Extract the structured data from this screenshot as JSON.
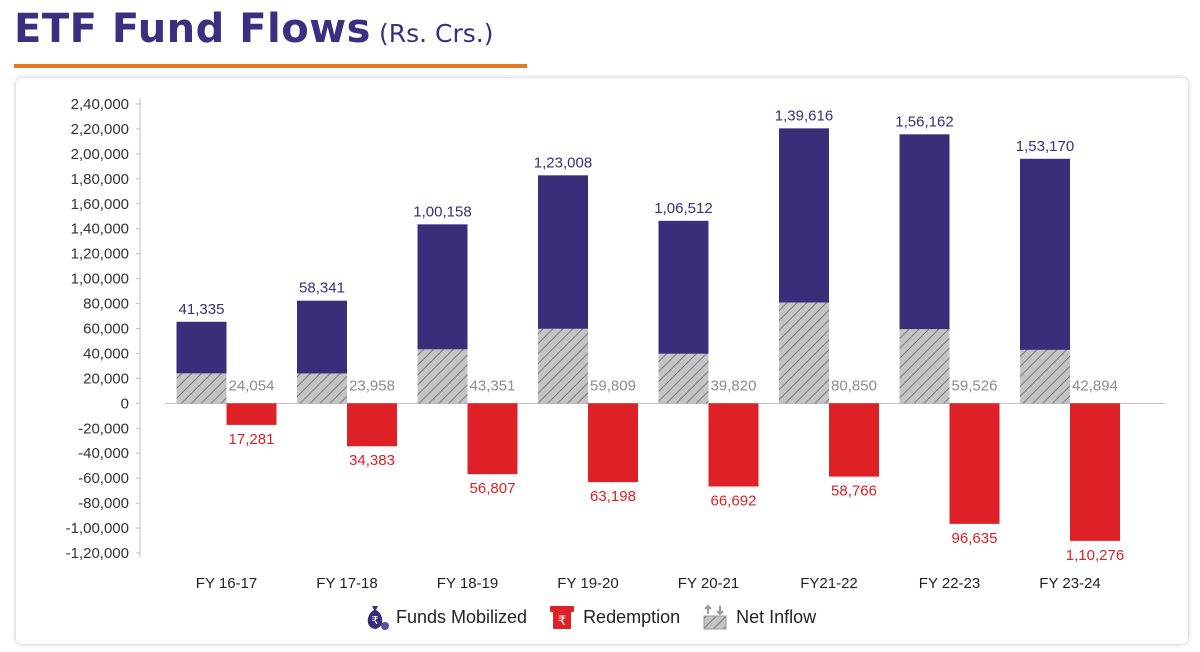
{
  "header": {
    "title": "ETF Fund Flows",
    "unit": "(Rs. Crs.)"
  },
  "colors": {
    "funds_mobilized": "#3a2e7a",
    "redemption": "#de2027",
    "net_inflow": "#b3b3b3",
    "underline": "#e87722"
  },
  "chart_data": {
    "type": "bar",
    "title": "ETF Fund Flows (Rs. Crs.)",
    "categories": [
      "FY 16-17",
      "FY 17-18",
      "FY 18-19",
      "FY 19-20",
      "FY 20-21",
      "FY21-22",
      "FY 22-23",
      "FY 23-24"
    ],
    "ylim": [
      -120000,
      240000
    ],
    "yticks": [
      240000,
      220000,
      200000,
      180000,
      160000,
      140000,
      120000,
      100000,
      80000,
      60000,
      40000,
      20000,
      0,
      -20000,
      -40000,
      -60000,
      -80000,
      -100000,
      -120000
    ],
    "ytick_labels": [
      "2,40,000",
      "2,20,000",
      "2,00,000",
      "1,80,000",
      "1,60,000",
      "1,40,000",
      "1,20,000",
      "1,00,000",
      "80,000",
      "60,000",
      "40,000",
      "20,000",
      "0",
      "-20,000",
      "-40,000",
      "-60,000",
      "-80,000",
      "-1,00,000",
      "-1,20,000"
    ],
    "series": [
      {
        "name": "Funds Mobilized",
        "values": [
          41335,
          58341,
          100158,
          123008,
          106512,
          139616,
          156162,
          153170
        ],
        "labels": [
          "41,335",
          "58,341",
          "1,00,158",
          "1,23,008",
          "1,06,512",
          "1,39,616",
          "1,56,162",
          "1,53,170"
        ]
      },
      {
        "name": "Redemption",
        "values": [
          -17281,
          -34383,
          -56807,
          -63198,
          -66692,
          -58766,
          -96635,
          -110276
        ],
        "labels": [
          "17,281",
          "34,383",
          "56,807",
          "63,198",
          "66,692",
          "58,766",
          "96,635",
          "1,10,276"
        ]
      },
      {
        "name": "Net Inflow",
        "values": [
          24054,
          23958,
          43351,
          59809,
          39820,
          80850,
          59526,
          42894
        ],
        "labels": [
          "24,054",
          "23,958",
          "43,351",
          "59,809",
          "39,820",
          "80,850",
          "59,526",
          "42,894"
        ]
      }
    ],
    "legend": [
      "Funds Mobilized",
      "Redemption",
      "Net Inflow"
    ],
    "legend_position": "bottom"
  }
}
